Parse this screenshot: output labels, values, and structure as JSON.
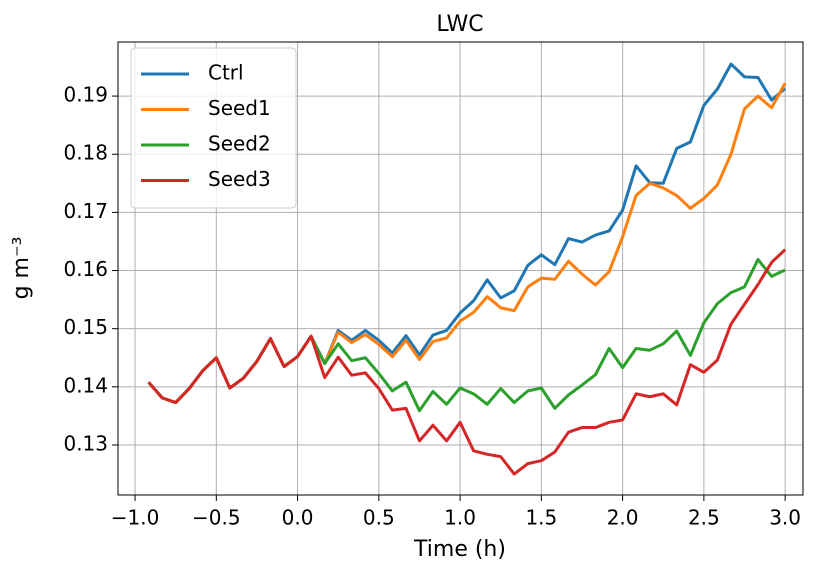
{
  "chart_data": {
    "type": "line",
    "title": "LWC",
    "x_label": "Time (h)",
    "y_label": "g m⁻³",
    "x": [
      -0.917,
      -0.833,
      -0.75,
      -0.667,
      -0.583,
      -0.5,
      -0.417,
      -0.333,
      -0.25,
      -0.167,
      -0.083,
      0,
      0.083,
      0.167,
      0.25,
      0.333,
      0.417,
      0.5,
      0.583,
      0.667,
      0.75,
      0.833,
      0.917,
      1,
      1.083,
      1.167,
      1.25,
      1.333,
      1.417,
      1.5,
      1.583,
      1.667,
      1.75,
      1.833,
      1.917,
      2,
      2.083,
      2.167,
      2.25,
      2.333,
      2.417,
      2.5,
      2.583,
      2.667,
      2.75,
      2.833,
      2.917,
      3
    ],
    "series": [
      {
        "name": "Ctrl",
        "color": "#1f77b4",
        "values": [
          0.1408,
          0.1381,
          0.1373,
          0.1397,
          0.1428,
          0.145,
          0.1398,
          0.1415,
          0.1444,
          0.1483,
          0.1435,
          0.1452,
          0.1487,
          0.144,
          0.1497,
          0.148,
          0.1497,
          0.148,
          0.1458,
          0.1488,
          0.1455,
          0.1489,
          0.1497,
          0.1527,
          0.1548,
          0.1584,
          0.1553,
          0.1565,
          0.1609,
          0.1627,
          0.161,
          0.1655,
          0.1649,
          0.1661,
          0.1668,
          0.1704,
          0.178,
          0.1751,
          0.175,
          0.181,
          0.1821,
          0.1884,
          0.1912,
          0.1955,
          0.1933,
          0.1932,
          0.1893,
          0.1913
        ]
      },
      {
        "name": "Seed1",
        "color": "#ff7f0e",
        "values": [
          0.1408,
          0.1381,
          0.1373,
          0.1397,
          0.1428,
          0.145,
          0.1398,
          0.1415,
          0.1444,
          0.1483,
          0.1435,
          0.1452,
          0.1487,
          0.144,
          0.1494,
          0.1476,
          0.149,
          0.1473,
          0.1452,
          0.148,
          0.1447,
          0.1478,
          0.1484,
          0.1513,
          0.1528,
          0.1555,
          0.1536,
          0.1531,
          0.1572,
          0.1587,
          0.1585,
          0.1616,
          0.1594,
          0.1575,
          0.1598,
          0.1658,
          0.1729,
          0.175,
          0.1742,
          0.1729,
          0.1707,
          0.1724,
          0.1747,
          0.18,
          0.1878,
          0.19,
          0.188,
          0.1922
        ]
      },
      {
        "name": "Seed2",
        "color": "#2ca02c",
        "values": [
          0.1408,
          0.1381,
          0.1373,
          0.1397,
          0.1428,
          0.145,
          0.1398,
          0.1415,
          0.1444,
          0.1483,
          0.1435,
          0.1452,
          0.1487,
          0.144,
          0.1474,
          0.1445,
          0.145,
          0.1423,
          0.1393,
          0.1408,
          0.1359,
          0.1392,
          0.137,
          0.1398,
          0.1388,
          0.137,
          0.1397,
          0.1373,
          0.1393,
          0.1398,
          0.1363,
          0.1386,
          0.1403,
          0.1421,
          0.1466,
          0.1433,
          0.1466,
          0.1463,
          0.1474,
          0.1496,
          0.1454,
          0.151,
          0.1543,
          0.1562,
          0.1572,
          0.1619,
          0.159,
          0.1601
        ]
      },
      {
        "name": "Seed3",
        "color": "#d62728",
        "values": [
          0.1408,
          0.1381,
          0.1373,
          0.1397,
          0.1428,
          0.145,
          0.1398,
          0.1415,
          0.1444,
          0.1483,
          0.1435,
          0.1452,
          0.1487,
          0.1416,
          0.1451,
          0.142,
          0.1424,
          0.1397,
          0.136,
          0.1363,
          0.1307,
          0.1334,
          0.1307,
          0.1339,
          0.129,
          0.1284,
          0.128,
          0.125,
          0.1268,
          0.1273,
          0.1288,
          0.1322,
          0.133,
          0.133,
          0.1339,
          0.1343,
          0.1388,
          0.1383,
          0.1388,
          0.1369,
          0.1438,
          0.1425,
          0.1446,
          0.1508,
          0.1542,
          0.1576,
          0.1614,
          0.1636
        ]
      }
    ],
    "xlim": [
      -1.105,
      3.11
    ],
    "ylim": [
      0.1214,
      0.1993
    ],
    "xticks": [
      {
        "value": -1,
        "label": "−1.0"
      },
      {
        "value": -0.5,
        "label": "−0.5"
      },
      {
        "value": 0,
        "label": "0.0"
      },
      0.5,
      {
        "value": 1,
        "label": "1.0"
      },
      1.5,
      {
        "value": 2,
        "label": "2.0"
      },
      2.5,
      {
        "value": 3,
        "label": "3.0"
      }
    ],
    "yticks": [
      0.13,
      0.14,
      0.15,
      0.16,
      0.17,
      0.18,
      0.19
    ],
    "grid": true,
    "legend": "upper left"
  }
}
